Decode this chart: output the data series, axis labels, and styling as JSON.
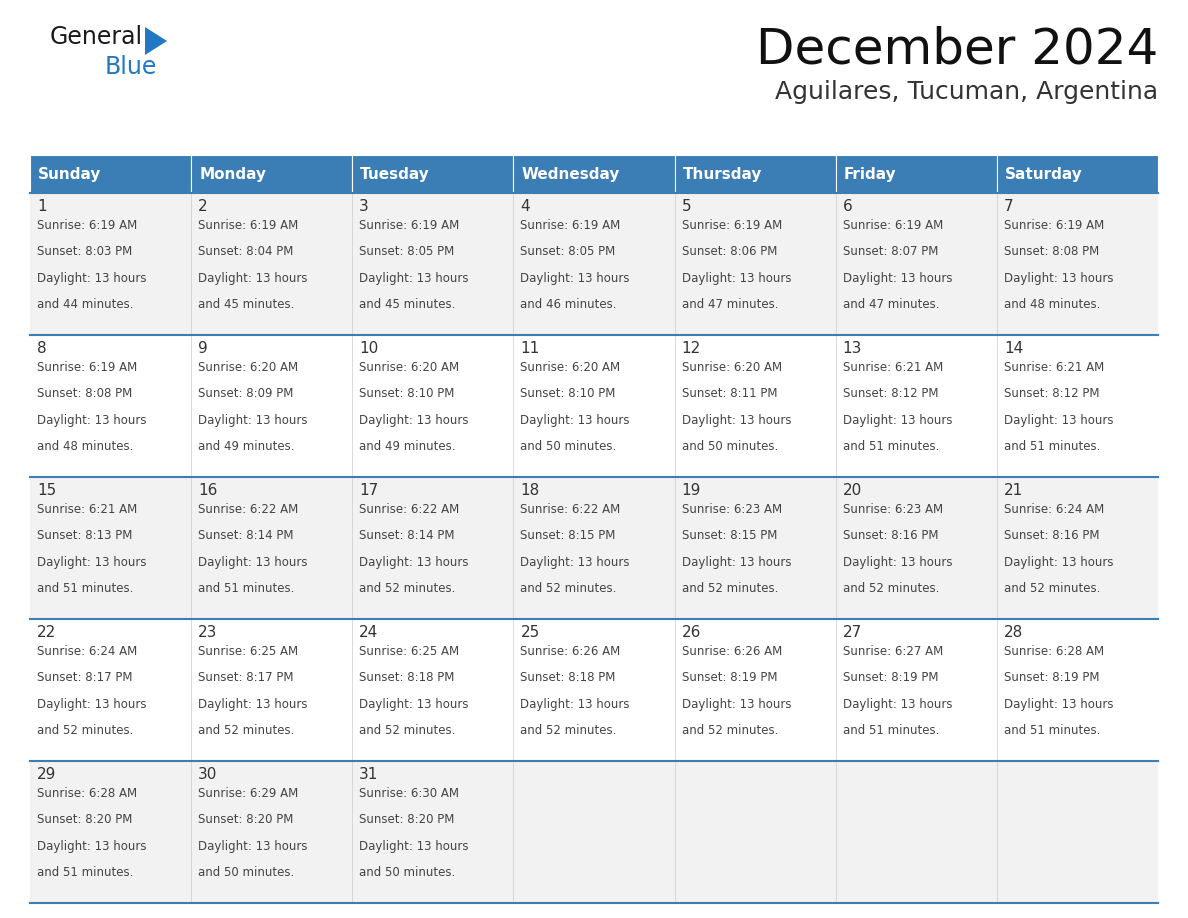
{
  "title": "December 2024",
  "subtitle": "Aguilares, Tucuman, Argentina",
  "header_bg_color": "#3A7EB5",
  "header_text_color": "#FFFFFF",
  "days_of_week": [
    "Sunday",
    "Monday",
    "Tuesday",
    "Wednesday",
    "Thursday",
    "Friday",
    "Saturday"
  ],
  "row_bg_colors": [
    "#F2F2F2",
    "#FFFFFF"
  ],
  "separator_color": "#3A7EB5",
  "text_color": "#444444",
  "day_number_color": "#333333",
  "calendar_data": [
    [
      {
        "day": 1,
        "sunrise": "6:19 AM",
        "sunset": "8:03 PM",
        "daylight_suffix": "44 minutes."
      },
      {
        "day": 2,
        "sunrise": "6:19 AM",
        "sunset": "8:04 PM",
        "daylight_suffix": "45 minutes."
      },
      {
        "day": 3,
        "sunrise": "6:19 AM",
        "sunset": "8:05 PM",
        "daylight_suffix": "45 minutes."
      },
      {
        "day": 4,
        "sunrise": "6:19 AM",
        "sunset": "8:05 PM",
        "daylight_suffix": "46 minutes."
      },
      {
        "day": 5,
        "sunrise": "6:19 AM",
        "sunset": "8:06 PM",
        "daylight_suffix": "47 minutes."
      },
      {
        "day": 6,
        "sunrise": "6:19 AM",
        "sunset": "8:07 PM",
        "daylight_suffix": "47 minutes."
      },
      {
        "day": 7,
        "sunrise": "6:19 AM",
        "sunset": "8:08 PM",
        "daylight_suffix": "48 minutes."
      }
    ],
    [
      {
        "day": 8,
        "sunrise": "6:19 AM",
        "sunset": "8:08 PM",
        "daylight_suffix": "48 minutes."
      },
      {
        "day": 9,
        "sunrise": "6:20 AM",
        "sunset": "8:09 PM",
        "daylight_suffix": "49 minutes."
      },
      {
        "day": 10,
        "sunrise": "6:20 AM",
        "sunset": "8:10 PM",
        "daylight_suffix": "49 minutes."
      },
      {
        "day": 11,
        "sunrise": "6:20 AM",
        "sunset": "8:10 PM",
        "daylight_suffix": "50 minutes."
      },
      {
        "day": 12,
        "sunrise": "6:20 AM",
        "sunset": "8:11 PM",
        "daylight_suffix": "50 minutes."
      },
      {
        "day": 13,
        "sunrise": "6:21 AM",
        "sunset": "8:12 PM",
        "daylight_suffix": "51 minutes."
      },
      {
        "day": 14,
        "sunrise": "6:21 AM",
        "sunset": "8:12 PM",
        "daylight_suffix": "51 minutes."
      }
    ],
    [
      {
        "day": 15,
        "sunrise": "6:21 AM",
        "sunset": "8:13 PM",
        "daylight_suffix": "51 minutes."
      },
      {
        "day": 16,
        "sunrise": "6:22 AM",
        "sunset": "8:14 PM",
        "daylight_suffix": "51 minutes."
      },
      {
        "day": 17,
        "sunrise": "6:22 AM",
        "sunset": "8:14 PM",
        "daylight_suffix": "52 minutes."
      },
      {
        "day": 18,
        "sunrise": "6:22 AM",
        "sunset": "8:15 PM",
        "daylight_suffix": "52 minutes."
      },
      {
        "day": 19,
        "sunrise": "6:23 AM",
        "sunset": "8:15 PM",
        "daylight_suffix": "52 minutes."
      },
      {
        "day": 20,
        "sunrise": "6:23 AM",
        "sunset": "8:16 PM",
        "daylight_suffix": "52 minutes."
      },
      {
        "day": 21,
        "sunrise": "6:24 AM",
        "sunset": "8:16 PM",
        "daylight_suffix": "52 minutes."
      }
    ],
    [
      {
        "day": 22,
        "sunrise": "6:24 AM",
        "sunset": "8:17 PM",
        "daylight_suffix": "52 minutes."
      },
      {
        "day": 23,
        "sunrise": "6:25 AM",
        "sunset": "8:17 PM",
        "daylight_suffix": "52 minutes."
      },
      {
        "day": 24,
        "sunrise": "6:25 AM",
        "sunset": "8:18 PM",
        "daylight_suffix": "52 minutes."
      },
      {
        "day": 25,
        "sunrise": "6:26 AM",
        "sunset": "8:18 PM",
        "daylight_suffix": "52 minutes."
      },
      {
        "day": 26,
        "sunrise": "6:26 AM",
        "sunset": "8:19 PM",
        "daylight_suffix": "52 minutes."
      },
      {
        "day": 27,
        "sunrise": "6:27 AM",
        "sunset": "8:19 PM",
        "daylight_suffix": "51 minutes."
      },
      {
        "day": 28,
        "sunrise": "6:28 AM",
        "sunset": "8:19 PM",
        "daylight_suffix": "51 minutes."
      }
    ],
    [
      {
        "day": 29,
        "sunrise": "6:28 AM",
        "sunset": "8:20 PM",
        "daylight_suffix": "51 minutes."
      },
      {
        "day": 30,
        "sunrise": "6:29 AM",
        "sunset": "8:20 PM",
        "daylight_suffix": "50 minutes."
      },
      {
        "day": 31,
        "sunrise": "6:30 AM",
        "sunset": "8:20 PM",
        "daylight_suffix": "50 minutes."
      },
      null,
      null,
      null,
      null
    ]
  ],
  "logo_text_general": "General",
  "logo_text_blue": "Blue",
  "logo_color_general": "#1a1a1a",
  "logo_color_blue": "#2178C4",
  "logo_triangle_color": "#2178C4"
}
